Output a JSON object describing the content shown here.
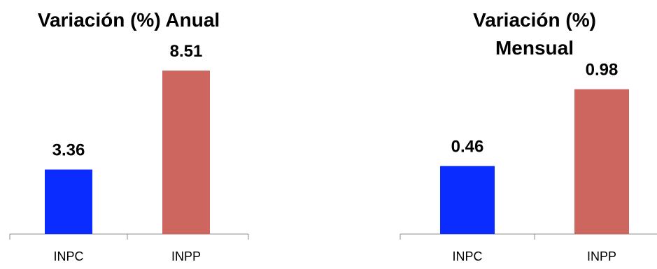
{
  "chart_data": [
    {
      "type": "bar",
      "title_lines": [
        "Variación (%) Anual"
      ],
      "categories": [
        "INPC",
        "INPP"
      ],
      "values": [
        3.36,
        8.51
      ],
      "value_labels": [
        "3.36",
        "8.51"
      ],
      "colors": [
        "#0a2cff",
        "#cd665f"
      ],
      "xlabel": "",
      "ylabel": "",
      "ylim": [
        0,
        10
      ],
      "grid": false,
      "legend": "none"
    },
    {
      "type": "bar",
      "title_lines": [
        "Variación (%)",
        "Mensual"
      ],
      "categories": [
        "INPC",
        "INPP"
      ],
      "values": [
        0.46,
        0.98
      ],
      "value_labels": [
        "0.46",
        "0.98"
      ],
      "colors": [
        "#0a2cff",
        "#cd665f"
      ],
      "xlabel": "",
      "ylabel": "",
      "ylim": [
        0,
        1.3
      ],
      "grid": false,
      "legend": "none"
    }
  ]
}
